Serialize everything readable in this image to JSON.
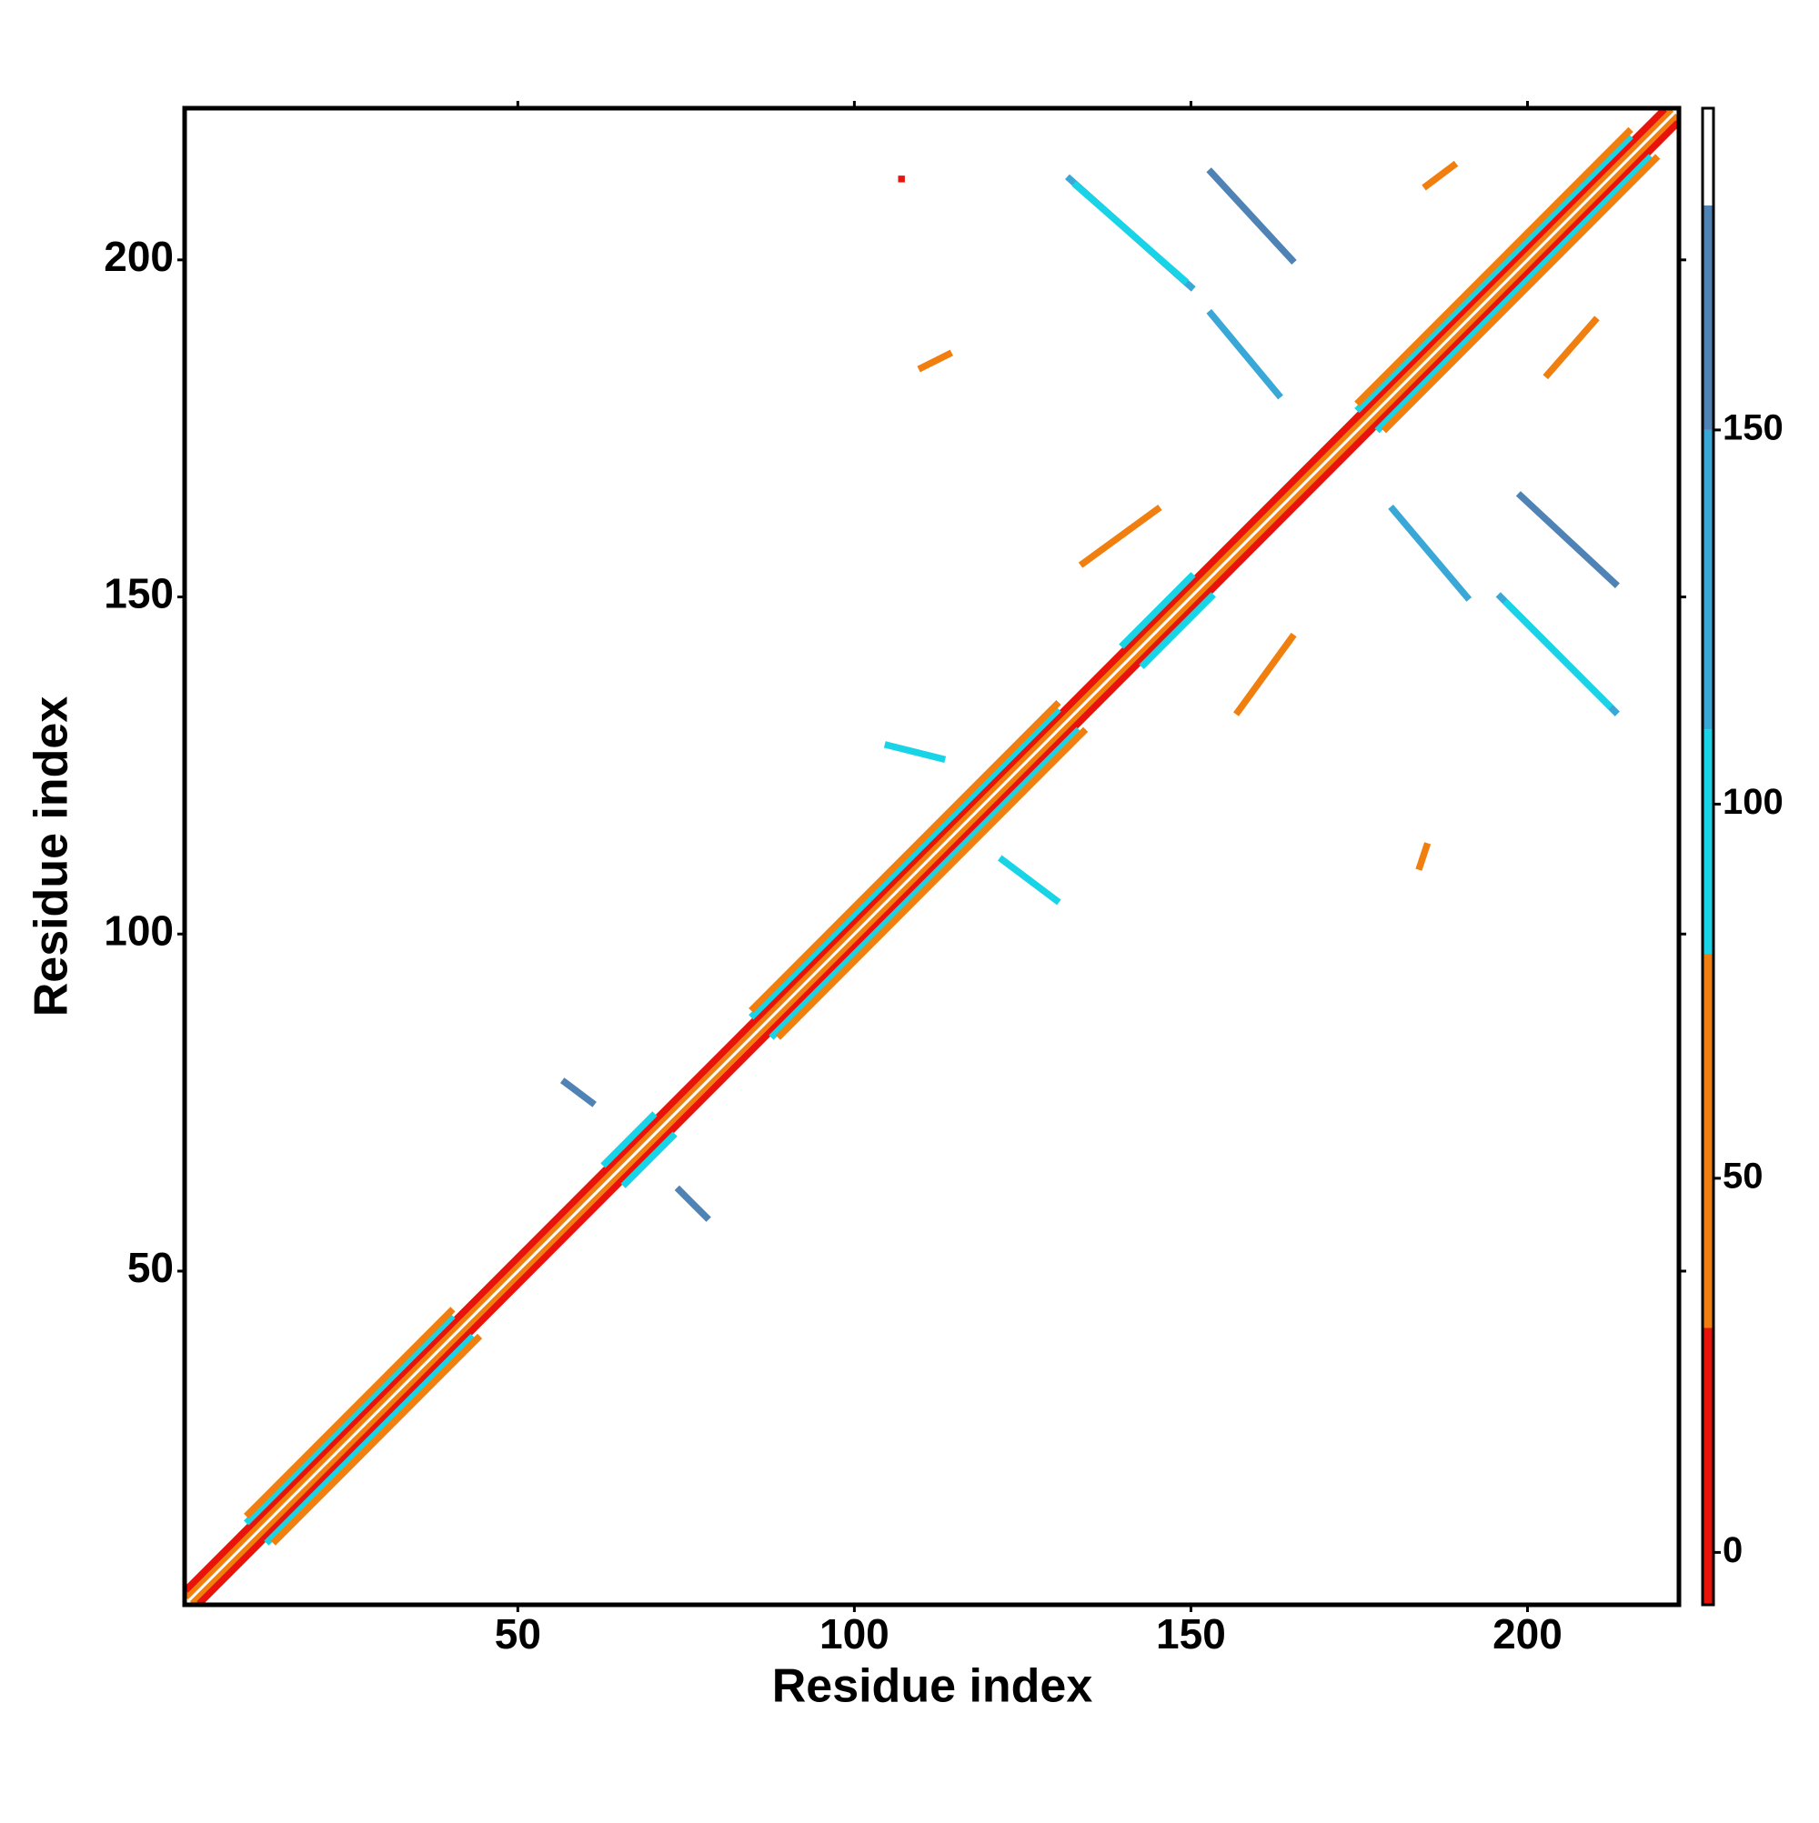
{
  "chart_data": {
    "type": "heatmap",
    "xlabel": "Residue index",
    "ylabel": "Residue index",
    "xlim": [
      0.5,
      222.5
    ],
    "ylim": [
      0.5,
      222.5
    ],
    "xticks": [
      50,
      100,
      150,
      200
    ],
    "yticks": [
      50,
      100,
      150,
      200
    ],
    "colorbar": {
      "lim": [
        -7,
        193
      ],
      "ticks": [
        0,
        50,
        100,
        150
      ],
      "bands": [
        {
          "from": -7,
          "to": 30,
          "color": "#e8140c"
        },
        {
          "from": 30,
          "to": 80,
          "color": "#f07f0f"
        },
        {
          "from": 80,
          "to": 110,
          "color": "#19d4e6"
        },
        {
          "from": 110,
          "to": 150,
          "color": "#3aa8d6"
        },
        {
          "from": 150,
          "to": 180,
          "color": "#4f83b5"
        },
        {
          "from": 180,
          "to": 193,
          "color": "#ffffff"
        }
      ]
    },
    "segments": [
      {
        "x": [
          1,
          221
        ],
        "y": [
          2,
          222
        ],
        "value": 40
      },
      {
        "x": [
          2,
          222
        ],
        "y": [
          1,
          221
        ],
        "value": 40
      },
      {
        "x": [
          1,
          220
        ],
        "y": [
          3,
          222
        ],
        "value": 10
      },
      {
        "x": [
          3,
          222
        ],
        "y": [
          1,
          220
        ],
        "value": 10
      },
      {
        "x": [
          10,
          40
        ],
        "y": [
          13,
          43
        ],
        "value": 95
      },
      {
        "x": [
          13,
          43
        ],
        "y": [
          10,
          40
        ],
        "value": 95
      },
      {
        "x": [
          10,
          40
        ],
        "y": [
          14,
          44
        ],
        "value": 60
      },
      {
        "x": [
          14,
          44
        ],
        "y": [
          10,
          40
        ],
        "value": 60
      },
      {
        "x": [
          85,
          130
        ],
        "y": [
          88,
          133
        ],
        "value": 95
      },
      {
        "x": [
          88,
          133
        ],
        "y": [
          85,
          130
        ],
        "value": 95
      },
      {
        "x": [
          85,
          130
        ],
        "y": [
          89,
          134
        ],
        "value": 60
      },
      {
        "x": [
          89,
          134
        ],
        "y": [
          85,
          130
        ],
        "value": 60
      },
      {
        "x": [
          63,
          70
        ],
        "y": [
          66,
          73
        ],
        "value": 95
      },
      {
        "x": [
          66,
          73
        ],
        "y": [
          63,
          70
        ],
        "value": 95
      },
      {
        "x": [
          140,
          150
        ],
        "y": [
          143,
          153
        ],
        "value": 95
      },
      {
        "x": [
          143,
          153
        ],
        "y": [
          140,
          150
        ],
        "value": 95
      },
      {
        "x": [
          175,
          215
        ],
        "y": [
          178,
          218
        ],
        "value": 95
      },
      {
        "x": [
          178,
          218
        ],
        "y": [
          175,
          215
        ],
        "value": 95
      },
      {
        "x": [
          175,
          215
        ],
        "y": [
          179,
          219
        ],
        "value": 60
      },
      {
        "x": [
          179,
          219
        ],
        "y": [
          175,
          215
        ],
        "value": 60
      },
      {
        "x": [
          132,
          150
        ],
        "y": [
          212,
          196
        ],
        "value": 140
      },
      {
        "x": [
          133,
          149
        ],
        "y": [
          211,
          197
        ],
        "value": 95
      },
      {
        "x": [
          153,
          165
        ],
        "y": [
          213,
          200
        ],
        "value": 150
      },
      {
        "x": [
          153,
          163
        ],
        "y": [
          192,
          180
        ],
        "value": 145
      },
      {
        "x": [
          180,
          191
        ],
        "y": [
          163,
          150
        ],
        "value": 145
      },
      {
        "x": [
          199,
          213
        ],
        "y": [
          165,
          152
        ],
        "value": 150
      },
      {
        "x": [
          196,
          213
        ],
        "y": [
          150,
          133
        ],
        "value": 140
      },
      {
        "x": [
          197,
          212
        ],
        "y": [
          149,
          134
        ],
        "value": 95
      },
      {
        "x": [
          57,
          61
        ],
        "y": [
          78,
          75
        ],
        "value": 150
      },
      {
        "x": [
          74,
          78
        ],
        "y": [
          62,
          58
        ],
        "value": 150
      },
      {
        "x": [
          185,
          189
        ],
        "y": [
          211,
          214
        ],
        "value": 60
      },
      {
        "x": [
          110,
          114
        ],
        "y": [
          184,
          186
        ],
        "value": 60
      },
      {
        "x": [
          134,
          145
        ],
        "y": [
          155,
          163
        ],
        "value": 40
      },
      {
        "x": [
          157,
          165
        ],
        "y": [
          133,
          144
        ],
        "value": 30
      },
      {
        "x": [
          203,
          210
        ],
        "y": [
          183,
          191
        ],
        "value": 40
      },
      {
        "x": [
          105,
          113
        ],
        "y": [
          128,
          126
        ],
        "value": 95
      },
      {
        "x": [
          122,
          130
        ],
        "y": [
          111,
          105
        ],
        "value": 95
      },
      {
        "x": [
          184,
          185
        ],
        "y": [
          110,
          113
        ],
        "value": 60
      },
      {
        "x": [
          107,
          107
        ],
        "y": [
          212,
          212
        ],
        "value": 10
      }
    ]
  }
}
